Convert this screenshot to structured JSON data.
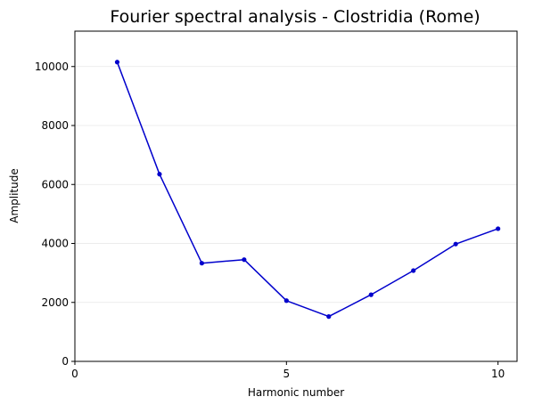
{
  "chart_data": {
    "type": "line",
    "title": "Fourier spectral analysis - Clostridia (Rome)",
    "xlabel": "Harmonic number",
    "ylabel": "Amplitude",
    "xlim": [
      0,
      10.45
    ],
    "ylim": [
      0,
      11200
    ],
    "xticks": [
      0,
      5,
      10
    ],
    "yticks": [
      0,
      2000,
      4000,
      6000,
      8000,
      10000
    ],
    "grid": "y-only",
    "color": "#0000cc",
    "x": [
      1,
      2,
      3,
      4,
      5,
      6,
      7,
      8,
      9,
      10
    ],
    "y": [
      10150,
      6350,
      3330,
      3450,
      2060,
      1520,
      2260,
      3080,
      3980,
      4500
    ]
  }
}
